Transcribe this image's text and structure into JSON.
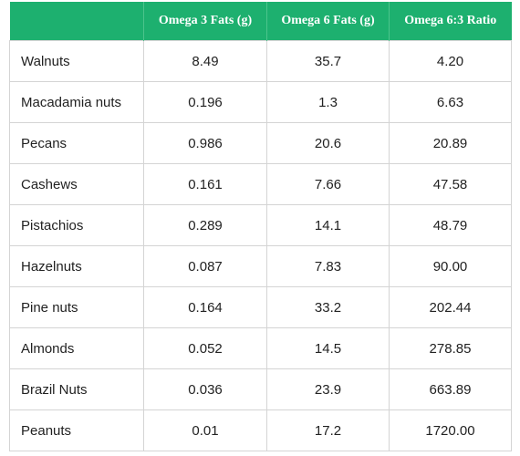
{
  "table": {
    "headers": [
      "",
      "Omega 3 Fats (g)",
      "Omega 6 Fats (g)",
      "Omega 6:3 Ratio"
    ],
    "rows": [
      [
        "Walnuts",
        "8.49",
        "35.7",
        "4.20"
      ],
      [
        "Macadamia nuts",
        "0.196",
        "1.3",
        "6.63"
      ],
      [
        "Pecans",
        "0.986",
        "20.6",
        "20.89"
      ],
      [
        "Cashews",
        "0.161",
        "7.66",
        "47.58"
      ],
      [
        "Pistachios",
        "0.289",
        "14.1",
        "48.79"
      ],
      [
        "Hazelnuts",
        "0.087",
        "7.83",
        "90.00"
      ],
      [
        "Pine nuts",
        "0.164",
        "33.2",
        "202.44"
      ],
      [
        "Almonds",
        "0.052",
        "14.5",
        "278.85"
      ],
      [
        "Brazil Nuts",
        "0.036",
        "23.9",
        "663.89"
      ],
      [
        "Peanuts",
        "0.01",
        "17.2",
        "1720.00"
      ]
    ]
  },
  "colors": {
    "header_background": "#1db06f",
    "header_text": "#ffffff",
    "border": "#d4d4d4"
  }
}
